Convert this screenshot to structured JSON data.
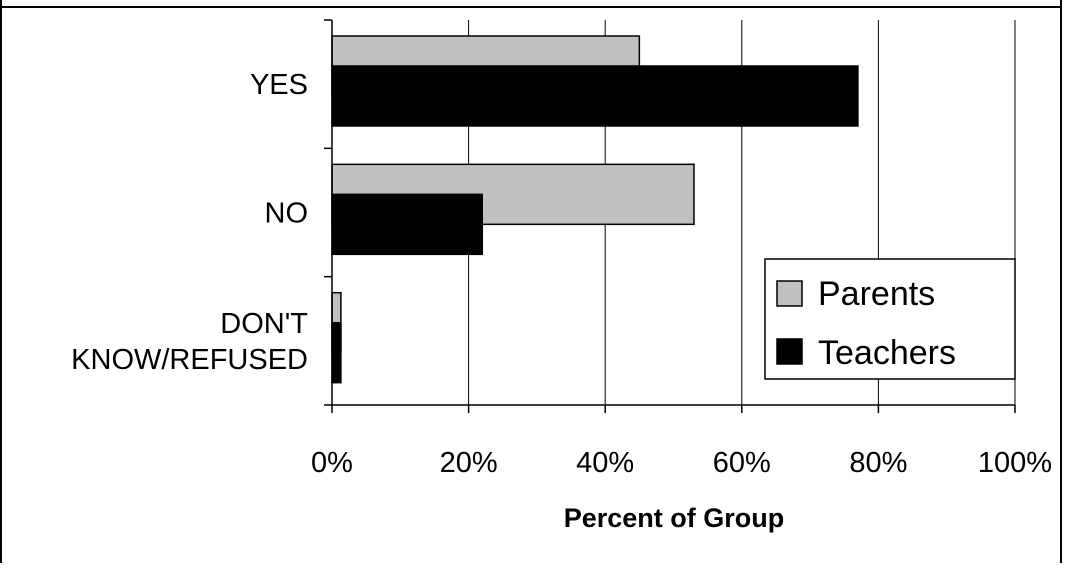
{
  "chart_data": {
    "type": "bar",
    "orientation": "horizontal",
    "title": "",
    "xlabel": "Percent of Group",
    "ylabel": "",
    "xlim": [
      0,
      100
    ],
    "x_ticks": [
      "0%",
      "20%",
      "40%",
      "60%",
      "80%",
      "100%"
    ],
    "categories": [
      "YES",
      "NO",
      "DON'T KNOW/REFUSED"
    ],
    "category_lines": [
      [
        "YES"
      ],
      [
        "NO"
      ],
      [
        "DON'T",
        "KNOW/REFUSED"
      ]
    ],
    "series": [
      {
        "name": "Parents",
        "values": [
          45,
          53,
          1.3
        ]
      },
      {
        "name": "Teachers",
        "values": [
          77,
          22,
          1.3
        ]
      }
    ],
    "legend": {
      "position": "bottom-right",
      "entries": [
        "Parents",
        "Teachers"
      ]
    },
    "colors": {
      "Parents": "#c0c0c0",
      "Teachers": "#000000"
    },
    "grid": true
  }
}
